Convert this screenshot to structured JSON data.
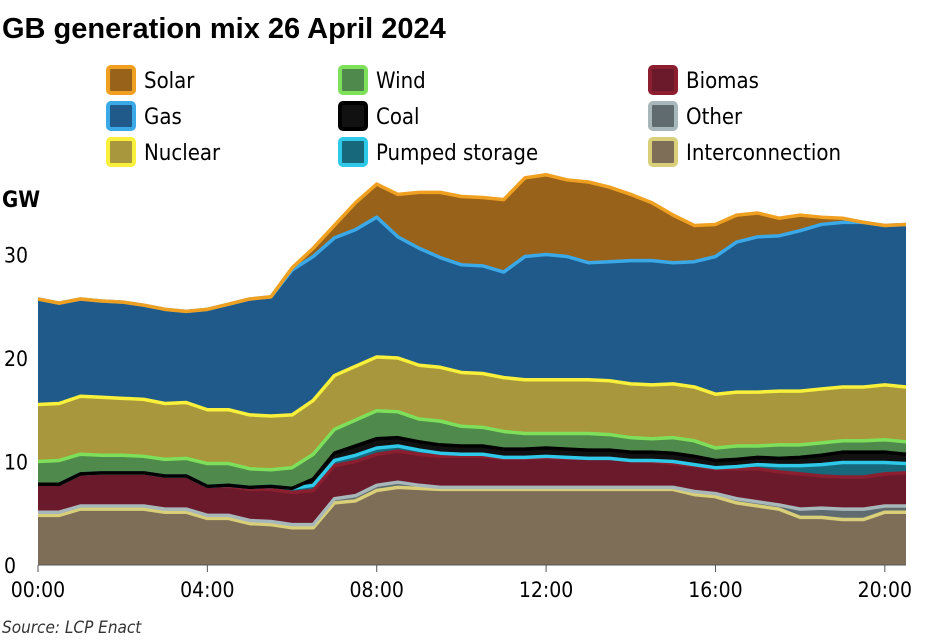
{
  "title": "GB generation mix 26 April 2024",
  "source": "Source: LCP Enact",
  "chart_data": {
    "type": "area",
    "stacked": true,
    "title": "GB generation mix 26 April 2024",
    "xlabel": "",
    "ylabel": "GW",
    "ylim": [
      0,
      37
    ],
    "yticks": [
      "0",
      "10",
      "20",
      "30"
    ],
    "xticks": [
      "00:00",
      "04:00",
      "08:00",
      "12:00",
      "16:00",
      "20:00"
    ],
    "xtick_hours": [
      0,
      4,
      8,
      12,
      16,
      20
    ],
    "grid": false,
    "legend_position": "top",
    "x": [
      0,
      0.5,
      1,
      1.5,
      2,
      2.5,
      3,
      3.5,
      4,
      4.5,
      5,
      5.5,
      6,
      6.5,
      7,
      7.5,
      8,
      8.5,
      9,
      9.5,
      10,
      10.5,
      11,
      11.5,
      12,
      12.5,
      13,
      13.5,
      14,
      14.5,
      15,
      15.5,
      16,
      16.5,
      17,
      17.5,
      18,
      18.5,
      19,
      19.5,
      20,
      20.5
    ],
    "series": [
      {
        "name": "Interconnection",
        "color": "#7e6e58",
        "line": "#d9cf78",
        "values": [
          4.8,
          4.8,
          5.4,
          5.4,
          5.4,
          5.4,
          5.1,
          5.1,
          4.5,
          4.5,
          4,
          3.9,
          3.6,
          3.6,
          6,
          6.2,
          7.2,
          7.5,
          7.4,
          7.3,
          7.3,
          7.3,
          7.3,
          7.3,
          7.3,
          7.3,
          7.3,
          7.3,
          7.3,
          7.3,
          7.3,
          6.8,
          6.6,
          6,
          5.7,
          5.4,
          4.6,
          4.6,
          4.4,
          4.4,
          5.1,
          5.1
        ]
      },
      {
        "name": "Other",
        "color": "#5f6b6f",
        "line": "#a8b8ba",
        "values": [
          0.3,
          0.3,
          0.3,
          0.3,
          0.3,
          0.3,
          0.3,
          0.3,
          0.3,
          0.3,
          0.3,
          0.3,
          0.3,
          0.3,
          0.4,
          0.5,
          0.5,
          0.5,
          0.3,
          0.2,
          0.2,
          0.2,
          0.2,
          0.2,
          0.2,
          0.2,
          0.2,
          0.2,
          0.2,
          0.2,
          0.2,
          0.3,
          0.3,
          0.4,
          0.4,
          0.4,
          0.8,
          0.9,
          1,
          1,
          0.6,
          0.6
        ]
      },
      {
        "name": "Biomas",
        "color": "#6b1a2c",
        "line": "#8c1f2f",
        "values": [
          2.7,
          2.7,
          3.1,
          3.2,
          3.2,
          3.2,
          3.2,
          3.2,
          2.8,
          2.8,
          3,
          3.1,
          3.1,
          3.3,
          3.2,
          3.3,
          3,
          3,
          3,
          3,
          3,
          3,
          2.8,
          2.8,
          2.9,
          2.8,
          2.8,
          2.8,
          2.6,
          2.5,
          2.3,
          2.5,
          2.4,
          2.9,
          3.2,
          3.2,
          3.4,
          3.1,
          3.1,
          3.1,
          3.1,
          3.2
        ]
      },
      {
        "name": "Pumped storage",
        "color": "#17687a",
        "line": "#2ec8e8",
        "values": [
          0,
          0,
          0,
          0,
          0,
          0,
          0,
          0,
          0,
          0.1,
          0.2,
          0.3,
          0.4,
          0.5,
          0.5,
          0.6,
          0.6,
          0.5,
          0.4,
          0.3,
          0.2,
          0.2,
          0.1,
          0.1,
          0.1,
          0.1,
          0,
          0,
          0,
          0.1,
          0.2,
          0.1,
          0.1,
          0.2,
          0.4,
          0.6,
          0.8,
          1.1,
          1.4,
          1.4,
          1.1,
          0.9
        ]
      },
      {
        "name": "Coal",
        "color": "#111111",
        "line": "#000000",
        "values": [
          0,
          0,
          0,
          0,
          0,
          0,
          0,
          0,
          0,
          0,
          0,
          0,
          0,
          0.6,
          0.7,
          0.9,
          0.9,
          0.8,
          0.8,
          0.8,
          0.8,
          0.8,
          0.8,
          0.8,
          0.8,
          0.8,
          0.8,
          0.8,
          0.8,
          0.8,
          0.8,
          0.8,
          0.7,
          0.7,
          0.7,
          0.7,
          0.8,
          0.9,
          1,
          1,
          1,
          0.9
        ]
      },
      {
        "name": "Wind",
        "color": "#4f8a4c",
        "line": "#7ee05a",
        "values": [
          2.2,
          2.3,
          1.9,
          1.7,
          1.7,
          1.6,
          1.6,
          1.7,
          2.2,
          2.1,
          1.8,
          1.6,
          2,
          2.4,
          2.3,
          2.5,
          2.7,
          2.5,
          2.2,
          2.3,
          1.9,
          1.8,
          1.7,
          1.5,
          1.4,
          1.5,
          1.6,
          1.5,
          1.4,
          1.3,
          1.5,
          1.5,
          1.2,
          1.3,
          1.1,
          1.3,
          1.2,
          1.2,
          1.1,
          1.1,
          1.2,
          1.2
        ]
      },
      {
        "name": "Nuclear",
        "color": "#a8973c",
        "line": "#f8f03a",
        "values": [
          5.5,
          5.5,
          5.6,
          5.6,
          5.5,
          5.5,
          5.4,
          5.4,
          5.2,
          5.2,
          5.2,
          5.2,
          5.1,
          5.2,
          5.2,
          5.2,
          5.2,
          5.2,
          5.2,
          5.2,
          5.2,
          5.2,
          5.2,
          5.2,
          5.2,
          5.2,
          5.2,
          5.2,
          5.2,
          5.2,
          5.2,
          5.2,
          5.2,
          5.2,
          5.2,
          5.2,
          5.2,
          5.2,
          5.2,
          5.2,
          5.3,
          5.3
        ]
      },
      {
        "name": "Gas",
        "color": "#1f5a8a",
        "line": "#3ba8e8",
        "values": [
          10.2,
          9.7,
          9.4,
          9.3,
          9.3,
          9.1,
          9.1,
          8.8,
          9.7,
          10.2,
          11.2,
          11.5,
          14,
          13.9,
          13.3,
          13.2,
          13.5,
          11.7,
          11.3,
          10.6,
          10.4,
          10.4,
          10.2,
          11.9,
          12.1,
          11.9,
          11.3,
          11.5,
          11.9,
          12,
          11.7,
          12.1,
          13.3,
          14.5,
          15,
          15,
          15.5,
          15.9,
          15.9,
          15.9,
          15.4,
          15.7
        ]
      },
      {
        "name": "Solar",
        "color": "#98621a",
        "line": "#f0a020",
        "values": [
          0,
          0,
          0,
          0,
          0,
          0,
          0,
          0,
          0,
          0,
          0,
          0,
          0.2,
          0.8,
          1.2,
          2.6,
          3.2,
          4.1,
          5.4,
          6.3,
          6.6,
          6.6,
          7,
          7.6,
          7.7,
          7.4,
          7.8,
          7.2,
          6.4,
          5.6,
          4.6,
          3.5,
          3.1,
          2.6,
          2.3,
          1.7,
          1.5,
          0.7,
          0.4,
          0,
          0,
          0
        ]
      },
      {
        "name": "Interconnection",
        "color": "#7e6e58",
        "line": "#d9cf78",
        "values": [
          0,
          0,
          0,
          0,
          0,
          0,
          0,
          0,
          0,
          0,
          0,
          0,
          0,
          0,
          0,
          0,
          0,
          0,
          0,
          0,
          0,
          0,
          0,
          0,
          0,
          0,
          0,
          0,
          0,
          0,
          0,
          0,
          0,
          0,
          0,
          0,
          0,
          0,
          0,
          0,
          0,
          0
        ]
      }
    ],
    "legend": [
      {
        "name": "Solar",
        "fill": "#98621a",
        "border": "#f0a020"
      },
      {
        "name": "Wind",
        "fill": "#4f8a4c",
        "border": "#7ee05a"
      },
      {
        "name": "Biomas",
        "fill": "#6b1a2c",
        "border": "#8c1f2f"
      },
      {
        "name": "Gas",
        "fill": "#1f5a8a",
        "border": "#3ba8e8"
      },
      {
        "name": "Coal",
        "fill": "#111111",
        "border": "#000000"
      },
      {
        "name": "Other",
        "fill": "#5f6b6f",
        "border": "#a8b8ba"
      },
      {
        "name": "Nuclear",
        "fill": "#a8973c",
        "border": "#f8f03a"
      },
      {
        "name": "Pumped storage",
        "fill": "#17687a",
        "border": "#2ec8e8"
      },
      {
        "name": "Interconnection",
        "fill": "#7e6e58",
        "border": "#d9cf78"
      }
    ]
  }
}
